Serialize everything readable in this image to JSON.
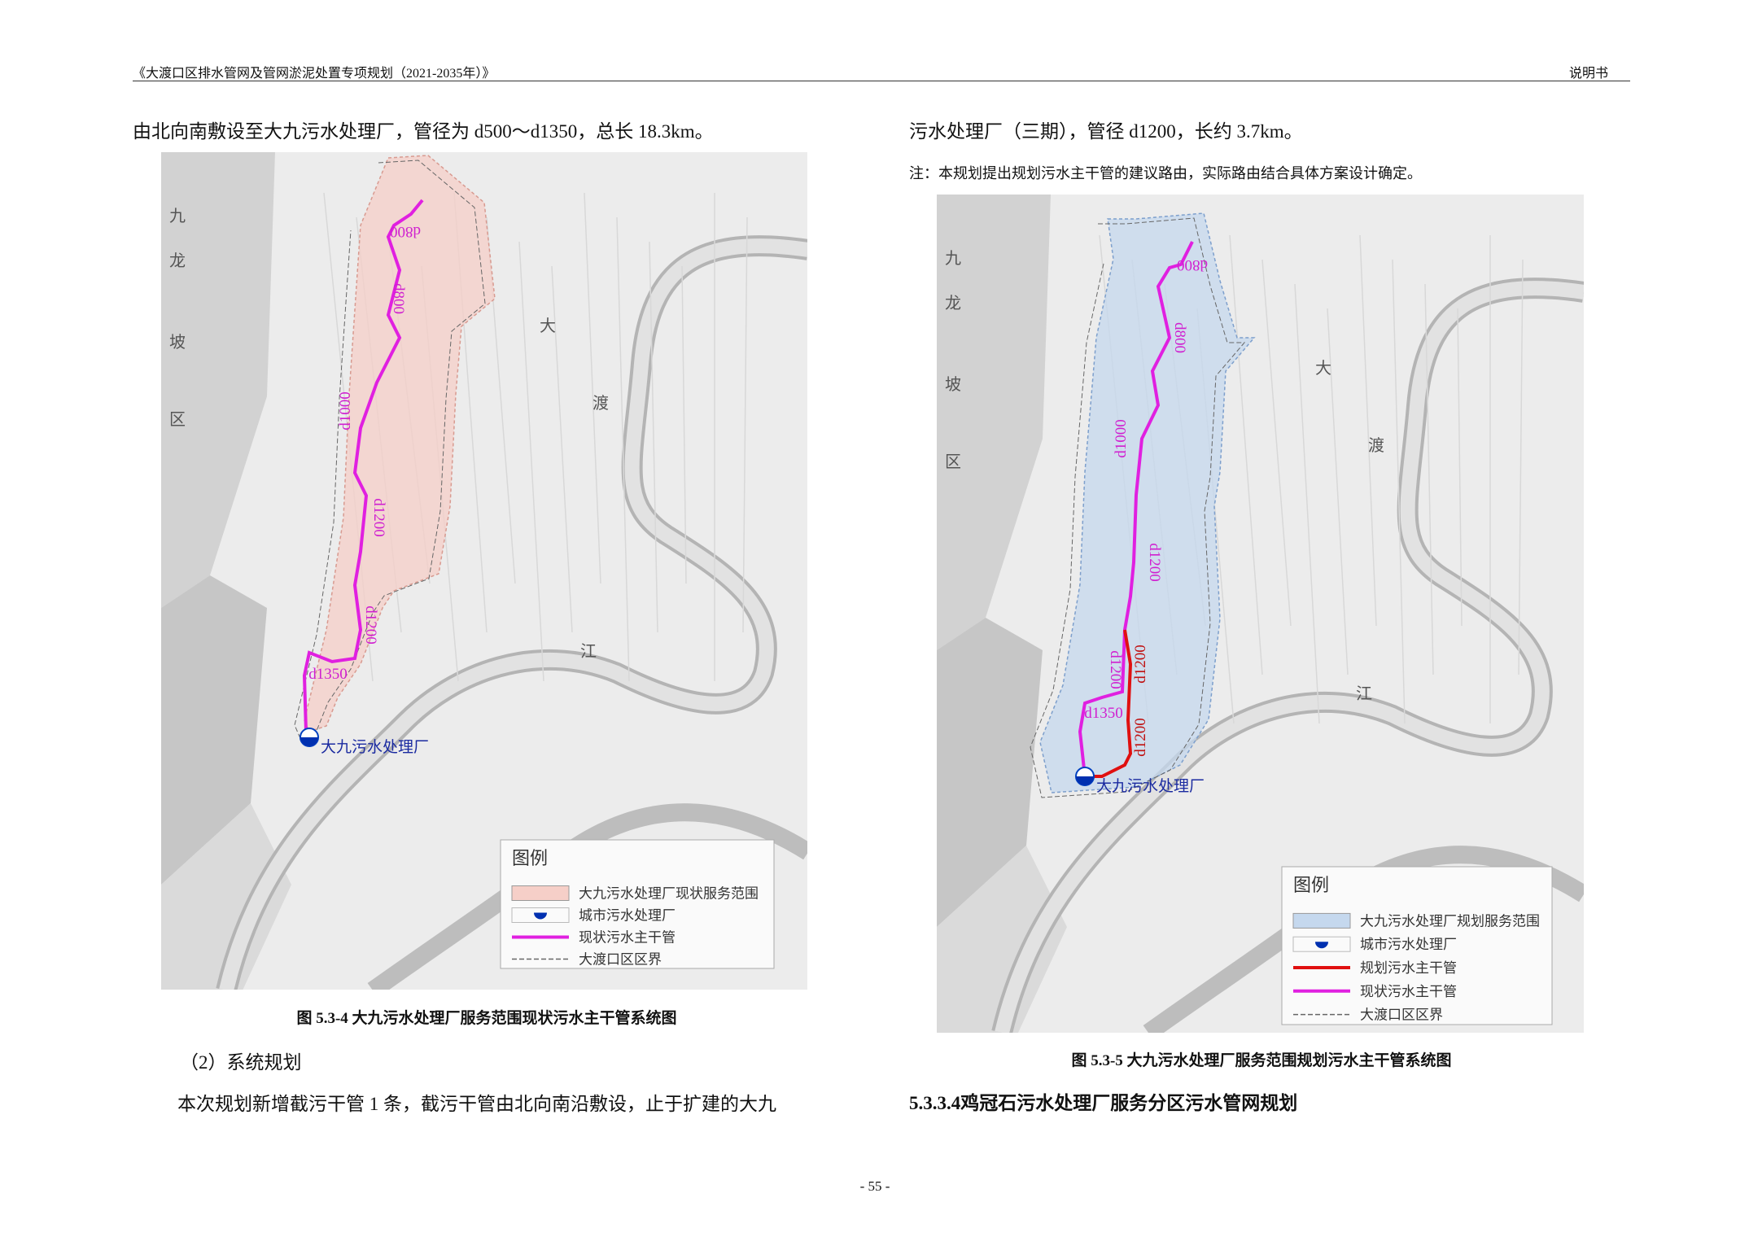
{
  "header": {
    "title": "《大渡口区排水管网及管网淤泥处置专项规划（2021-2035年）》",
    "section": "说明书"
  },
  "left": {
    "paragraph": "由北向南敷设至大九污水处理厂，管径为 d500～d1350，总长 18.3km。",
    "map": {
      "place_labels": [
        "九",
        "龙",
        "坡",
        "区",
        "大",
        "渡",
        "江"
      ],
      "pipe_labels": [
        "d800",
        "d800",
        "d1000",
        "d1200",
        "d1200",
        "d1350"
      ],
      "plant": "大九污水处理厂",
      "legend": {
        "title": "图例",
        "items": [
          "大九污水处理厂现状服务范围",
          "城市污水处理厂",
          "现状污水主干管",
          "大渡口区区界"
        ]
      }
    },
    "caption": "图 5.3-4  大九污水处理厂服务范围现状污水主干管系统图",
    "subheading": "（2）系统规划",
    "paragraph2": "本次规划新增截污干管 1 条，截污干管由北向南沿敷设，止于扩建的大九"
  },
  "right": {
    "paragraph": "污水处理厂（三期），管径 d1200，长约 3.7km。",
    "note": "注：本规划提出规划污水主干管的建议路由，实际路由结合具体方案设计确定。",
    "map": {
      "place_labels": [
        "九",
        "龙",
        "坡",
        "区",
        "大",
        "渡",
        "江"
      ],
      "pipe_labels": [
        "d800",
        "d800",
        "d1000",
        "d1200",
        "d1200",
        "d1200",
        "d1350",
        "d1200"
      ],
      "plant": "大九污水处理厂",
      "legend": {
        "title": "图例",
        "items": [
          "大九污水处理厂规划服务范围",
          "城市污水处理厂",
          "规划污水主干管",
          "现状污水主干管",
          "大渡口区区界"
        ]
      }
    },
    "caption": "图 5.3-5  大九污水处理厂服务范围规划污水主干管系统图",
    "heading": "5.3.3.4鸡冠石污水处理厂服务分区污水管网规划"
  },
  "page_number": "- 55 -"
}
